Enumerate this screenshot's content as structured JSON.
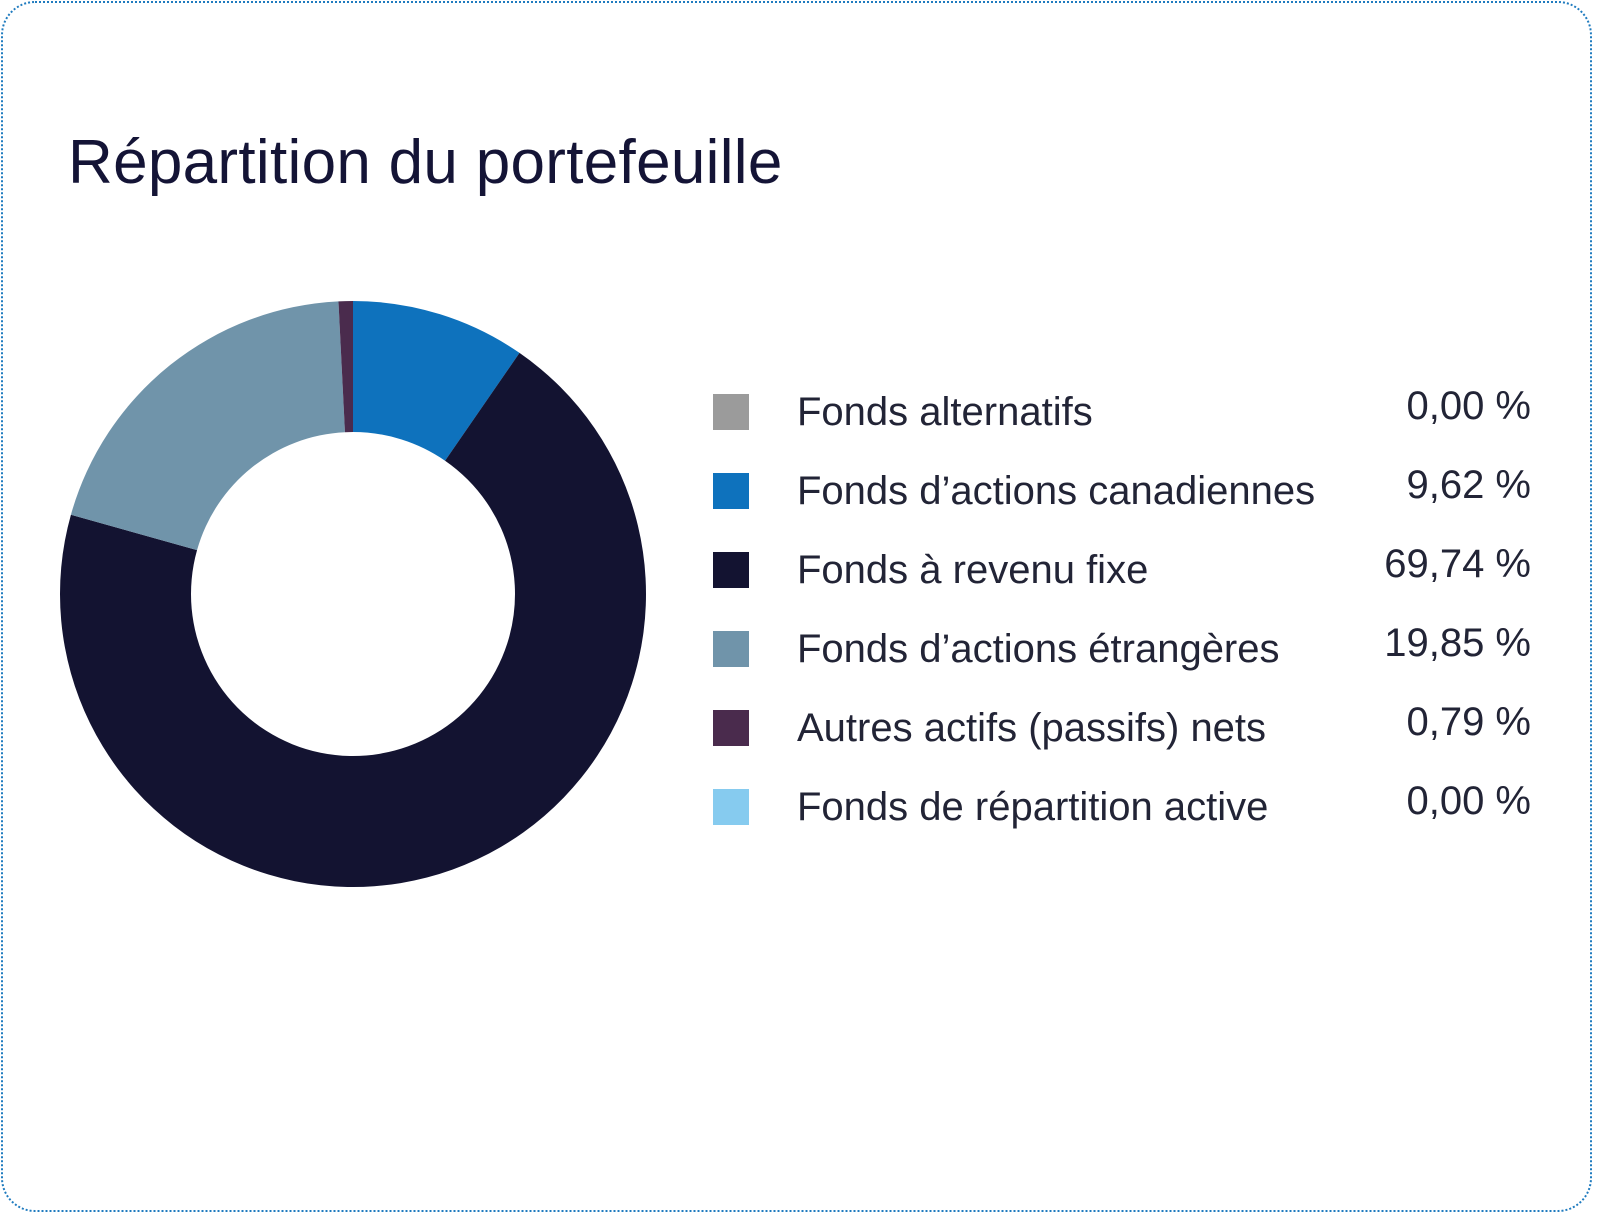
{
  "chart_data": {
    "type": "pie",
    "title": "Répartition du portefeuille",
    "slices": [
      {
        "name": "Fonds alternatifs",
        "value": 0.0,
        "label": "0,00 %",
        "color": "#9b9b9b"
      },
      {
        "name": "Fonds d’actions canadiennes",
        "value": 9.62,
        "label": "9,62 %",
        "color": "#0e72bd"
      },
      {
        "name": "Fonds à revenu fixe",
        "value": 69.74,
        "label": "69,74 %",
        "color": "#131331"
      },
      {
        "name": "Fonds d’actions étrangères",
        "value": 19.85,
        "label": "19,85 %",
        "color": "#7094aa"
      },
      {
        "name": "Autres actifs (passifs) nets",
        "value": 0.79,
        "label": "0,79 %",
        "color": "#4a2b4d"
      },
      {
        "name": "Fonds de répartition active",
        "value": 0.0,
        "label": "0,00 %",
        "color": "#86cbef"
      }
    ],
    "legend_position": "right"
  }
}
